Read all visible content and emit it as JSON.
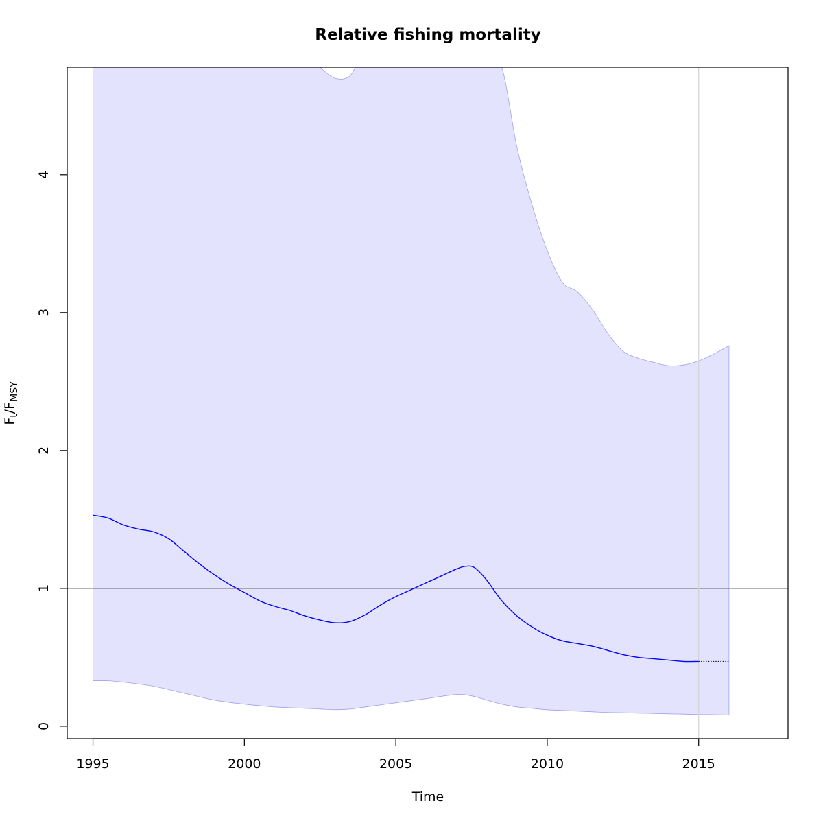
{
  "chart_data": {
    "type": "line",
    "title": "Relative fishing mortality",
    "xlabel": "Time",
    "ylabel": {
      "main_F": "F",
      "sub_t": "t",
      "slash": "/",
      "main_F2": "F",
      "sub_MSY": "MSY"
    },
    "xlim": [
      1994.15,
      2017.95
    ],
    "ylim": [
      -0.09,
      4.78
    ],
    "x_ticks": [
      1995,
      2000,
      2005,
      2010,
      2015
    ],
    "y_ticks": [
      0,
      1,
      2,
      3,
      4
    ],
    "reference_line_y": 1,
    "vertical_line_x": 2015,
    "grid": false,
    "series": [
      {
        "role": "estimate",
        "x": [
          1995,
          1995.5,
          1996,
          1996.5,
          1997,
          1997.5,
          1998,
          1998.5,
          1999,
          1999.5,
          2000,
          2000.5,
          2001,
          2001.5,
          2002,
          2002.5,
          2003,
          2003.5,
          2004,
          2004.5,
          2005,
          2005.5,
          2006,
          2006.5,
          2007,
          2007.3,
          2007.6,
          2008,
          2008.5,
          2009,
          2009.5,
          2010,
          2010.5,
          2011,
          2011.5,
          2012,
          2012.5,
          2013,
          2013.5,
          2014,
          2014.5,
          2015
        ],
        "y": [
          1.53,
          1.51,
          1.46,
          1.43,
          1.41,
          1.36,
          1.27,
          1.18,
          1.1,
          1.03,
          0.97,
          0.91,
          0.87,
          0.84,
          0.8,
          0.77,
          0.75,
          0.76,
          0.81,
          0.88,
          0.94,
          0.99,
          1.04,
          1.09,
          1.14,
          1.16,
          1.15,
          1.06,
          0.91,
          0.8,
          0.72,
          0.66,
          0.62,
          0.6,
          0.58,
          0.55,
          0.52,
          0.5,
          0.49,
          0.48,
          0.47,
          0.47
        ],
        "color": "#0000ff"
      },
      {
        "role": "projection",
        "x": [
          2015,
          2016
        ],
        "y": [
          0.47,
          0.47
        ],
        "color": "#000000",
        "style": "dotted"
      }
    ],
    "confidence_band": {
      "x": [
        1995,
        1995.5,
        1996,
        1997,
        1998,
        1999,
        2000,
        2001,
        2002,
        2002.5,
        2003,
        2003.5,
        2004,
        2005,
        2006,
        2007,
        2007.5,
        2008,
        2008.5,
        2009,
        2009.5,
        2010,
        2010.5,
        2011,
        2011.5,
        2012,
        2012.5,
        2013,
        2013.5,
        2014,
        2014.5,
        2015,
        2015.5,
        2016
      ],
      "lower": [
        0.33,
        0.33,
        0.32,
        0.29,
        0.24,
        0.19,
        0.16,
        0.14,
        0.13,
        0.125,
        0.12,
        0.125,
        0.14,
        0.17,
        0.2,
        0.23,
        0.22,
        0.19,
        0.16,
        0.14,
        0.13,
        0.12,
        0.115,
        0.11,
        0.105,
        0.1,
        0.098,
        0.095,
        0.093,
        0.09,
        0.088,
        0.085,
        0.084,
        0.082
      ],
      "upper": [
        4.9,
        4.9,
        4.9,
        4.9,
        4.9,
        4.9,
        4.9,
        4.9,
        4.9,
        4.78,
        4.7,
        4.72,
        4.9,
        4.9,
        4.9,
        4.9,
        4.9,
        4.9,
        4.78,
        4.2,
        3.78,
        3.45,
        3.22,
        3.15,
        3.02,
        2.85,
        2.72,
        2.67,
        2.64,
        2.615,
        2.62,
        2.65,
        2.7,
        2.76
      ],
      "fill": "#e3e3fd",
      "stroke": "#a0a0f0"
    },
    "colors": {
      "estimate": "#0000ff",
      "band_fill": "#e3e3fd",
      "reference_line": "#666666",
      "vertical_line": "#d3d3d3"
    }
  }
}
